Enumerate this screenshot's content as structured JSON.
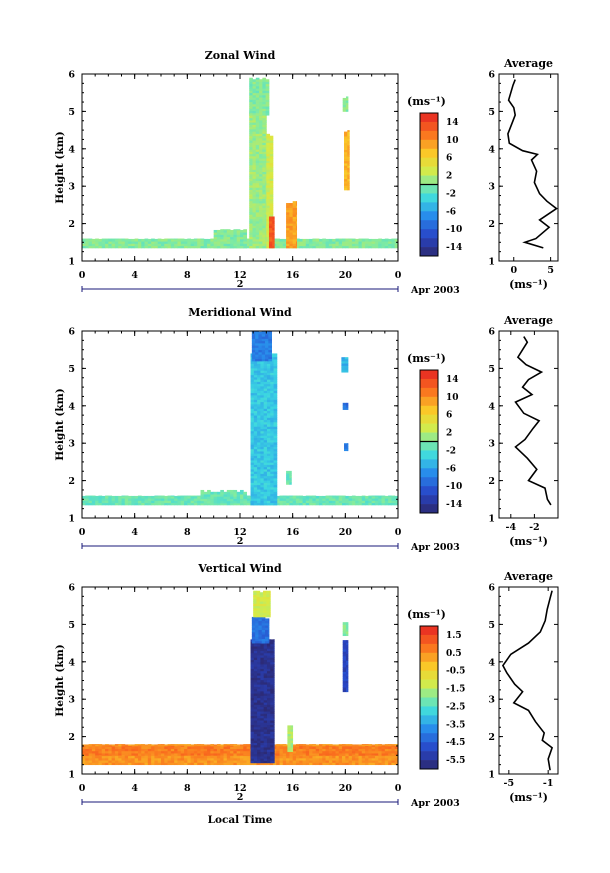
{
  "figure": {
    "date_label": "Apr 2003",
    "day_label": "2",
    "xaxis_label": "Local Time",
    "avg_xlabel": "(ms⁻¹)"
  },
  "chart_data": [
    {
      "type": "heatmap",
      "title": "Zonal Wind",
      "ylabel": "Height (km)",
      "x_ticks": [
        "0",
        "4",
        "8",
        "12",
        "16",
        "20",
        "0"
      ],
      "xlim": [
        0,
        24
      ],
      "y_ticks": [
        "1",
        "2",
        "3",
        "4",
        "5",
        "6"
      ],
      "ylim": [
        1,
        6
      ],
      "colorbar": {
        "unit": "(ms⁻¹)",
        "labels": [
          "14",
          "10",
          "6",
          "2",
          "-2",
          "-6",
          "-10",
          "-14"
        ],
        "range": [
          -16,
          16
        ],
        "contour_zero_at": 0
      },
      "fields": [
        {
          "t": [
            0,
            24
          ],
          "h": [
            1.35,
            1.6
          ],
          "value": 0
        },
        {
          "t": [
            10,
            12.5
          ],
          "h": [
            1.35,
            1.85
          ],
          "value": 0
        },
        {
          "t": [
            12.7,
            14.0
          ],
          "h": [
            1.35,
            5.0
          ],
          "value": 1
        },
        {
          "t": [
            12.7,
            14.2
          ],
          "h": [
            4.9,
            5.9
          ],
          "value": 0
        },
        {
          "t": [
            14.0,
            14.5
          ],
          "h": [
            1.35,
            4.4
          ],
          "value": 3
        },
        {
          "t": [
            14.2,
            14.6
          ],
          "h": [
            1.35,
            2.2
          ],
          "value": 13
        },
        {
          "t": [
            15.5,
            16.3
          ],
          "h": [
            1.35,
            2.6
          ],
          "value": 9
        },
        {
          "t": [
            19.9,
            20.3
          ],
          "h": [
            2.9,
            4.5
          ],
          "value": 8
        },
        {
          "t": [
            19.8,
            20.2
          ],
          "h": [
            5.0,
            5.4
          ],
          "value": 0
        }
      ],
      "average": {
        "title": "Average",
        "xlim": [
          -2,
          6
        ],
        "x_ticks": [
          "0",
          "5"
        ],
        "y_ticks": [
          "1",
          "2",
          "3",
          "4",
          "5",
          "6"
        ],
        "profile": [
          {
            "h": 1.35,
            "v": 4.0
          },
          {
            "h": 1.5,
            "v": 1.5
          },
          {
            "h": 1.6,
            "v": 3.0
          },
          {
            "h": 1.9,
            "v": 4.8
          },
          {
            "h": 2.1,
            "v": 3.5
          },
          {
            "h": 2.4,
            "v": 5.8
          },
          {
            "h": 2.6,
            "v": 4.5
          },
          {
            "h": 2.8,
            "v": 3.5
          },
          {
            "h": 3.1,
            "v": 2.8
          },
          {
            "h": 3.4,
            "v": 3.1
          },
          {
            "h": 3.7,
            "v": 2.4
          },
          {
            "h": 3.85,
            "v": 3.2
          },
          {
            "h": 3.95,
            "v": 1.2
          },
          {
            "h": 4.15,
            "v": -0.6
          },
          {
            "h": 4.4,
            "v": -0.8
          },
          {
            "h": 4.7,
            "v": -0.2
          },
          {
            "h": 4.9,
            "v": 0.2
          },
          {
            "h": 5.1,
            "v": 0.0
          },
          {
            "h": 5.3,
            "v": -0.7
          },
          {
            "h": 5.5,
            "v": -0.4
          },
          {
            "h": 5.7,
            "v": -0.1
          },
          {
            "h": 5.85,
            "v": 0.2
          }
        ]
      }
    },
    {
      "type": "heatmap",
      "title": "Meridional Wind",
      "ylabel": "Height (km)",
      "x_ticks": [
        "0",
        "4",
        "8",
        "12",
        "16",
        "20",
        "0"
      ],
      "xlim": [
        0,
        24
      ],
      "y_ticks": [
        "1",
        "2",
        "3",
        "4",
        "5",
        "6"
      ],
      "ylim": [
        1,
        6
      ],
      "colorbar": {
        "unit": "(ms⁻¹)",
        "labels": [
          "14",
          "10",
          "6",
          "2",
          "-2",
          "-6",
          "-10",
          "-14"
        ],
        "range": [
          -16,
          16
        ],
        "contour_zero_at": 0
      },
      "fields": [
        {
          "t": [
            0,
            24
          ],
          "h": [
            1.35,
            1.6
          ],
          "value": -1
        },
        {
          "t": [
            9,
            12.5
          ],
          "h": [
            1.4,
            1.75
          ],
          "value": -1
        },
        {
          "t": [
            12.8,
            14.8
          ],
          "h": [
            1.35,
            5.4
          ],
          "value": -4
        },
        {
          "t": [
            12.9,
            14.4
          ],
          "h": [
            5.2,
            6.0
          ],
          "value": -8
        },
        {
          "t": [
            15.5,
            15.9
          ],
          "h": [
            1.9,
            2.3
          ],
          "value": -1
        },
        {
          "t": [
            19.7,
            20.2
          ],
          "h": [
            4.9,
            5.3
          ],
          "value": -5
        },
        {
          "t": [
            19.8,
            20.2
          ],
          "h": [
            3.9,
            4.1
          ],
          "value": -9
        },
        {
          "t": [
            19.9,
            20.2
          ],
          "h": [
            2.8,
            3.0
          ],
          "value": -8
        }
      ],
      "average": {
        "title": "Average",
        "xlim": [
          -5,
          0
        ],
        "x_ticks": [
          "-4",
          "-2"
        ],
        "y_ticks": [
          "1",
          "2",
          "3",
          "4",
          "5",
          "6"
        ],
        "profile": [
          {
            "h": 1.35,
            "v": -0.6
          },
          {
            "h": 1.5,
            "v": -0.9
          },
          {
            "h": 1.8,
            "v": -1.1
          },
          {
            "h": 2.0,
            "v": -2.5
          },
          {
            "h": 2.3,
            "v": -1.8
          },
          {
            "h": 2.6,
            "v": -2.6
          },
          {
            "h": 2.9,
            "v": -3.6
          },
          {
            "h": 3.1,
            "v": -2.8
          },
          {
            "h": 3.4,
            "v": -2.1
          },
          {
            "h": 3.6,
            "v": -1.6
          },
          {
            "h": 3.8,
            "v": -2.9
          },
          {
            "h": 4.1,
            "v": -3.6
          },
          {
            "h": 4.3,
            "v": -2.2
          },
          {
            "h": 4.5,
            "v": -3.0
          },
          {
            "h": 4.7,
            "v": -2.5
          },
          {
            "h": 4.9,
            "v": -1.4
          },
          {
            "h": 5.1,
            "v": -2.7
          },
          {
            "h": 5.3,
            "v": -3.4
          },
          {
            "h": 5.5,
            "v": -3.0
          },
          {
            "h": 5.7,
            "v": -2.6
          },
          {
            "h": 5.85,
            "v": -2.9
          }
        ]
      }
    },
    {
      "type": "heatmap",
      "title": "Vertical Wind",
      "ylabel": "Height (km)",
      "x_ticks": [
        "0",
        "4",
        "8",
        "12",
        "16",
        "20",
        "0"
      ],
      "xlim": [
        0,
        24
      ],
      "y_ticks": [
        "1",
        "2",
        "3",
        "4",
        "5",
        "6"
      ],
      "ylim": [
        1,
        6
      ],
      "colorbar": {
        "unit": "(ms⁻¹)",
        "labels": [
          "1.5",
          "0.5",
          "-0.5",
          "-1.5",
          "-2.5",
          "-3.5",
          "-4.5",
          "-5.5"
        ],
        "range": [
          -6,
          2
        ],
        "contour_zero_at": null
      },
      "fields": [
        {
          "t": [
            0,
            24
          ],
          "h": [
            1.25,
            1.8
          ],
          "value": 0.4
        },
        {
          "t": [
            0,
            24
          ],
          "h": [
            1.5,
            1.75
          ],
          "value": 0.7
        },
        {
          "t": [
            12.8,
            14.6
          ],
          "h": [
            1.3,
            4.6
          ],
          "value": -5.6
        },
        {
          "t": [
            12.9,
            14.2
          ],
          "h": [
            4.5,
            5.2
          ],
          "value": -4.2
        },
        {
          "t": [
            13.0,
            14.3
          ],
          "h": [
            5.2,
            5.9
          ],
          "value": -1.2
        },
        {
          "t": [
            15.6,
            16.0
          ],
          "h": [
            1.6,
            2.3
          ],
          "value": -1.6
        },
        {
          "t": [
            19.8,
            20.2
          ],
          "h": [
            3.2,
            4.6
          ],
          "value": -5.0
        },
        {
          "t": [
            19.8,
            20.2
          ],
          "h": [
            4.7,
            5.1
          ],
          "value": -2.0
        }
      ],
      "average": {
        "title": "Average",
        "xlim": [
          -6,
          0
        ],
        "x_ticks": [
          "-5",
          "-1"
        ],
        "y_ticks": [
          "1",
          "2",
          "3",
          "4",
          "5",
          "6"
        ],
        "profile": [
          {
            "h": 1.1,
            "v": -0.8
          },
          {
            "h": 1.4,
            "v": -1.0
          },
          {
            "h": 1.7,
            "v": -0.6
          },
          {
            "h": 1.9,
            "v": -1.6
          },
          {
            "h": 2.1,
            "v": -1.4
          },
          {
            "h": 2.4,
            "v": -2.3
          },
          {
            "h": 2.7,
            "v": -3.0
          },
          {
            "h": 2.9,
            "v": -4.5
          },
          {
            "h": 3.2,
            "v": -3.6
          },
          {
            "h": 3.4,
            "v": -4.4
          },
          {
            "h": 3.7,
            "v": -5.2
          },
          {
            "h": 3.9,
            "v": -5.6
          },
          {
            "h": 4.2,
            "v": -4.8
          },
          {
            "h": 4.5,
            "v": -3.0
          },
          {
            "h": 4.8,
            "v": -1.8
          },
          {
            "h": 5.1,
            "v": -1.3
          },
          {
            "h": 5.4,
            "v": -1.1
          },
          {
            "h": 5.7,
            "v": -0.8
          },
          {
            "h": 5.9,
            "v": -0.6
          }
        ]
      }
    }
  ]
}
